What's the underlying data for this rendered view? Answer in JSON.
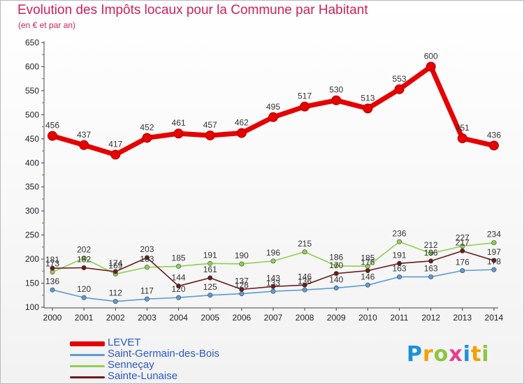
{
  "chart_data": {
    "type": "line",
    "title": "Evolution des Impôts locaux pour la Commune par Habitant",
    "subtitle": "(en € et par an)",
    "x": [
      2000,
      2001,
      2002,
      2003,
      2004,
      2005,
      2006,
      2007,
      2008,
      2009,
      2010,
      2011,
      2012,
      2013,
      2014
    ],
    "ylim": [
      100,
      650
    ],
    "yticks": [
      100,
      150,
      200,
      250,
      300,
      350,
      400,
      450,
      500,
      550,
      600,
      650
    ],
    "grid": false,
    "legend": "bottom-left",
    "series": [
      {
        "name": "LEVET",
        "color": "#e60000",
        "values": [
          456,
          437,
          417,
          452,
          461,
          457,
          462,
          495,
          517,
          530,
          513,
          553,
          600,
          451,
          436
        ]
      },
      {
        "name": "Saint-Germain-des-Bois",
        "color": "#5b9bd5",
        "values": [
          136,
          120,
          112,
          117,
          120,
          125,
          128,
          133,
          136,
          140,
          146,
          163,
          163,
          176,
          178
        ]
      },
      {
        "name": "Senneçay",
        "color": "#8fd14f",
        "values": [
          173,
          202,
          169,
          183,
          185,
          191,
          190,
          196,
          215,
          186,
          185,
          236,
          212,
          227,
          234
        ]
      },
      {
        "name": "Sainte-Lunaise",
        "color": "#6b1a1a",
        "values": [
          181,
          182,
          174,
          203,
          144,
          161,
          137,
          143,
          146,
          170,
          176,
          191,
          196,
          217,
          197
        ]
      }
    ]
  },
  "logo": {
    "letters": [
      "P",
      "r",
      "o",
      "x",
      "i",
      "t",
      "i"
    ],
    "colors": [
      "#1e90d8",
      "#f2a100",
      "#8cc63f",
      "#e83c8f",
      "#1e90d8",
      "#f2a100",
      "#8cc63f"
    ]
  }
}
